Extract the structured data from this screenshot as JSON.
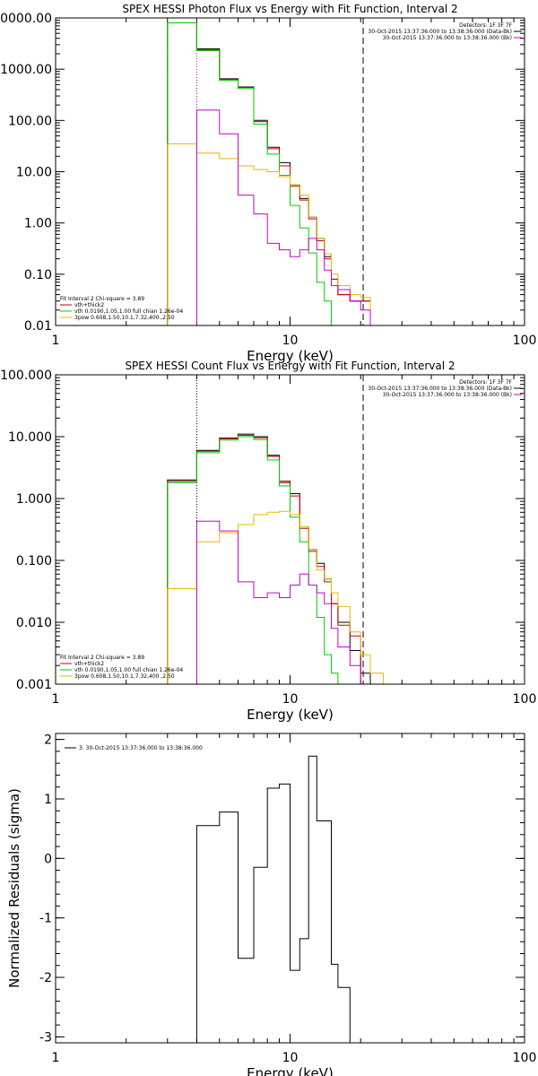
{
  "chart_data": [
    {
      "type": "line",
      "title": "SPEX HESSI Photon Flux vs Energy with Fit Function, Interval 2",
      "xlabel": "Energy (keV)",
      "ylabel": "",
      "xscale": "log",
      "yscale": "log",
      "xlim": [
        1,
        100
      ],
      "ylim": [
        0.01,
        10000
      ],
      "x_ticks": [
        {
          "v": 1,
          "label": "1"
        },
        {
          "v": 10,
          "label": "10"
        },
        {
          "v": 100,
          "label": "100"
        }
      ],
      "y_ticks": [
        {
          "v": 0.01,
          "label": "0.01"
        },
        {
          "v": 0.1,
          "label": "0.10"
        },
        {
          "v": 1,
          "label": "1.00"
        },
        {
          "v": 10,
          "label": "10.00"
        },
        {
          "v": 100,
          "label": "100.00"
        },
        {
          "v": 1000,
          "label": "1000.00"
        },
        {
          "v": 10000,
          "label": "10000.00"
        }
      ],
      "vlines": [
        {
          "x": 4.0,
          "style": "dotted",
          "color": "#cc00cc"
        },
        {
          "x": 20.5,
          "style": "dashed",
          "color": "#000000"
        }
      ],
      "legend_topright": [
        {
          "text": "Detectors: 1F 3F 7F",
          "color": "#000000"
        },
        {
          "text": "30-Oct-2015 13:37:36.000 to 13:38:36.000 (Data-Bk)",
          "color": "#000000"
        },
        {
          "text": "30-Oct-2015 13:37:36.000 to 13:38:36.000 (Bk)",
          "color": "#cc00cc"
        }
      ],
      "legend_bottomleft": [
        {
          "text": "Fit Interval 2   Chi-square = 3.89",
          "color": "#000000"
        },
        {
          "text": "vth+thick2",
          "color": "#cc0000"
        },
        {
          "text": "vth 0.0190,1.05,1.00  full chian 1.26e-04",
          "color": "#00cc00"
        },
        {
          "text": "3pow 0.608,1.50,10.1,7.32,400.,2.50",
          "color": "#e6b800"
        }
      ],
      "series": [
        {
          "name": "Data-Bk",
          "color": "#000000",
          "edges": [
            3.0,
            4.0,
            5.0,
            6.0,
            7.0,
            8.0,
            9.0,
            10.0,
            11.0,
            12.0,
            13.0,
            14.0,
            15.0,
            16.0,
            18.0,
            20.0,
            22.0
          ],
          "values": [
            8000,
            2500,
            650,
            450,
            100,
            30,
            15,
            5.5,
            3.0,
            1.3,
            0.5,
            0.22,
            0.08,
            0.04,
            0.03,
            0.03
          ]
        },
        {
          "name": "vth+thick2",
          "color": "#cc0000",
          "edges": [
            3.0,
            4.0,
            5.0,
            6.0,
            7.0,
            8.0,
            9.0,
            10.0,
            11.0,
            12.0,
            13.0,
            14.0,
            15.0,
            16.0,
            18.0,
            20.0,
            22.0
          ],
          "values": [
            8000,
            2400,
            630,
            440,
            95,
            28,
            13,
            5.2,
            2.8,
            1.2,
            0.45,
            0.2,
            0.08,
            0.04,
            0.03,
            0.03
          ]
        },
        {
          "name": "vth",
          "color": "#00cc00",
          "edges": [
            3.0,
            4.0,
            5.0,
            6.0,
            7.0,
            8.0,
            9.0,
            10.0,
            11.0,
            12.0,
            13.0,
            14.0,
            15.0,
            16.0
          ],
          "values": [
            8000,
            2300,
            600,
            420,
            85,
            22,
            8.5,
            2.2,
            0.8,
            0.26,
            0.07,
            0.03,
            0.01
          ]
        },
        {
          "name": "3pow",
          "color": "#e6b800",
          "edges": [
            3.0,
            4.0,
            5.0,
            6.0,
            7.0,
            8.0,
            9.0,
            10.0,
            11.0,
            12.0,
            13.0,
            14.0,
            15.0,
            16.0,
            18.0,
            20.0,
            22.0
          ],
          "values": [
            35,
            23,
            18,
            13,
            11,
            10,
            8,
            5.5,
            3.5,
            1.3,
            0.5,
            0.25,
            0.1,
            0.06,
            0.04,
            0.035
          ]
        },
        {
          "name": "Bk",
          "color": "#cc00cc",
          "edges": [
            4.0,
            5.0,
            6.0,
            7.0,
            8.0,
            9.0,
            10.0,
            11.0,
            12.0,
            13.0,
            14.0,
            15.0,
            16.0,
            18.0,
            20.0,
            22.0
          ],
          "values": [
            160,
            55,
            3.5,
            1.5,
            0.4,
            0.3,
            0.22,
            0.3,
            0.5,
            0.3,
            0.12,
            0.06,
            0.05,
            0.03,
            0.02
          ]
        }
      ]
    },
    {
      "type": "line",
      "title": "SPEX HESSI Count Flux vs Energy with Fit Function, Interval 2",
      "xlabel": "Energy (keV)",
      "ylabel": "",
      "xscale": "log",
      "yscale": "log",
      "xlim": [
        1,
        100
      ],
      "ylim": [
        0.001,
        100
      ],
      "x_ticks": [
        {
          "v": 1,
          "label": "1"
        },
        {
          "v": 10,
          "label": "10"
        },
        {
          "v": 100,
          "label": "100"
        }
      ],
      "y_ticks": [
        {
          "v": 0.001,
          "label": "0.001"
        },
        {
          "v": 0.01,
          "label": "0.010"
        },
        {
          "v": 0.1,
          "label": "0.100"
        },
        {
          "v": 1,
          "label": "1.000"
        },
        {
          "v": 10,
          "label": "10.000"
        },
        {
          "v": 100,
          "label": "100.000"
        }
      ],
      "vlines": [
        {
          "x": 4.0,
          "style": "dotted",
          "color": "#000000"
        },
        {
          "x": 20.5,
          "style": "dashed",
          "color": "#000000"
        }
      ],
      "legend_topright": [
        {
          "text": "Detectors: 1F 3F 7F",
          "color": "#000000"
        },
        {
          "text": "30-Oct-2015 13:37:36.000 to 13:38:36.000 (Data-Bk)",
          "color": "#000000"
        },
        {
          "text": "30-Oct-2015 13:37:36.000 to 13:38:36.000 (Bk)",
          "color": "#cc00cc"
        }
      ],
      "legend_bottomleft": [
        {
          "text": "Fit Interval 2   Chi-square = 3.89",
          "color": "#000000"
        },
        {
          "text": "vth+thick2",
          "color": "#cc0000"
        },
        {
          "text": "vth 0.0190,1.05,1.00  full chian 1.26e-04",
          "color": "#00cc00"
        },
        {
          "text": "3pow 0.608,1.50,10.1,7.32,400.,2.50",
          "color": "#e6b800"
        }
      ],
      "series": [
        {
          "name": "Data-Bk",
          "color": "#000000",
          "edges": [
            3.0,
            4.0,
            5.0,
            6.0,
            7.0,
            8.0,
            9.0,
            10.0,
            11.0,
            12.0,
            13.0,
            14.0,
            15.0,
            16.0,
            18.0,
            20.0,
            22.0
          ],
          "values": [
            2.0,
            6.0,
            9.5,
            11.0,
            10.0,
            5.0,
            1.9,
            1.2,
            0.35,
            0.15,
            0.09,
            0.05,
            0.02,
            0.01,
            0.0035,
            0.0015
          ]
        },
        {
          "name": "vth+thick2",
          "color": "#cc0000",
          "edges": [
            3.0,
            4.0,
            5.0,
            6.0,
            7.0,
            8.0,
            9.0,
            10.0,
            11.0,
            12.0,
            13.0,
            14.0,
            15.0,
            16.0,
            18.0,
            20.0
          ],
          "values": [
            1.9,
            5.8,
            9.3,
            10.5,
            9.6,
            4.8,
            1.8,
            1.1,
            0.33,
            0.14,
            0.08,
            0.045,
            0.02,
            0.009,
            0.006
          ]
        },
        {
          "name": "vth",
          "color": "#00cc00",
          "edges": [
            3.0,
            4.0,
            5.0,
            6.0,
            7.0,
            8.0,
            9.0,
            10.0,
            11.0,
            12.0,
            13.0,
            14.0,
            15.0,
            16.0
          ],
          "values": [
            1.8,
            5.5,
            8.8,
            10.0,
            9.0,
            4.2,
            1.6,
            0.5,
            0.2,
            0.04,
            0.012,
            0.003,
            0.0015
          ]
        },
        {
          "name": "3pow",
          "color": "#e6b800",
          "edges": [
            3.0,
            4.0,
            5.0,
            6.0,
            7.0,
            8.0,
            9.0,
            10.0,
            11.0,
            12.0,
            13.0,
            14.0,
            15.0,
            16.0,
            18.0,
            20.0,
            22.0,
            25.0
          ],
          "values": [
            0.035,
            0.2,
            0.28,
            0.38,
            0.55,
            0.6,
            0.62,
            0.55,
            0.35,
            0.15,
            0.07,
            0.05,
            0.03,
            0.018,
            0.007,
            0.003,
            0.0015
          ]
        },
        {
          "name": "Bk",
          "color": "#cc00cc",
          "edges": [
            4.0,
            5.0,
            6.0,
            7.0,
            8.0,
            9.0,
            10.0,
            11.0,
            12.0,
            13.0,
            14.0,
            15.0,
            16.0,
            18.0,
            20.0
          ],
          "values": [
            0.43,
            0.3,
            0.045,
            0.025,
            0.03,
            0.025,
            0.04,
            0.06,
            0.04,
            0.03,
            0.02,
            0.008,
            0.004,
            0.002
          ]
        }
      ]
    },
    {
      "type": "line",
      "title": "",
      "xlabel": "Energy (keV)",
      "ylabel": "Normalized Residuals (sigma)",
      "xscale": "log",
      "yscale": "linear",
      "xlim": [
        1,
        100
      ],
      "ylim": [
        -3.1,
        2.1
      ],
      "x_ticks": [
        {
          "v": 1,
          "label": "1"
        },
        {
          "v": 10,
          "label": "10"
        },
        {
          "v": 100,
          "label": "100"
        }
      ],
      "y_ticks": [
        {
          "v": -3,
          "label": "-3"
        },
        {
          "v": -2,
          "label": "-2"
        },
        {
          "v": -1,
          "label": "-1"
        },
        {
          "v": 0,
          "label": "0"
        },
        {
          "v": 1,
          "label": "1"
        },
        {
          "v": 2,
          "label": "2"
        }
      ],
      "vlines": [],
      "legend_topleft": [
        {
          "text": "3. 30-Oct-2015 13:37:36.000 to 13:38:36.000",
          "color": "#000000"
        }
      ],
      "series": [
        {
          "name": "Residuals",
          "color": "#000000",
          "edges": [
            4.0,
            5.0,
            6.0,
            7.0,
            8.0,
            9.0,
            10.0,
            11.0,
            12.0,
            13.0,
            15.0,
            16.0,
            18.0,
            20.0
          ],
          "values": [
            0.55,
            0.78,
            -1.68,
            -0.15,
            1.18,
            1.25,
            -1.88,
            -1.35,
            1.72,
            0.63,
            -1.78,
            -2.17,
            -3.5
          ],
          "start_from": -3.5
        }
      ]
    }
  ]
}
